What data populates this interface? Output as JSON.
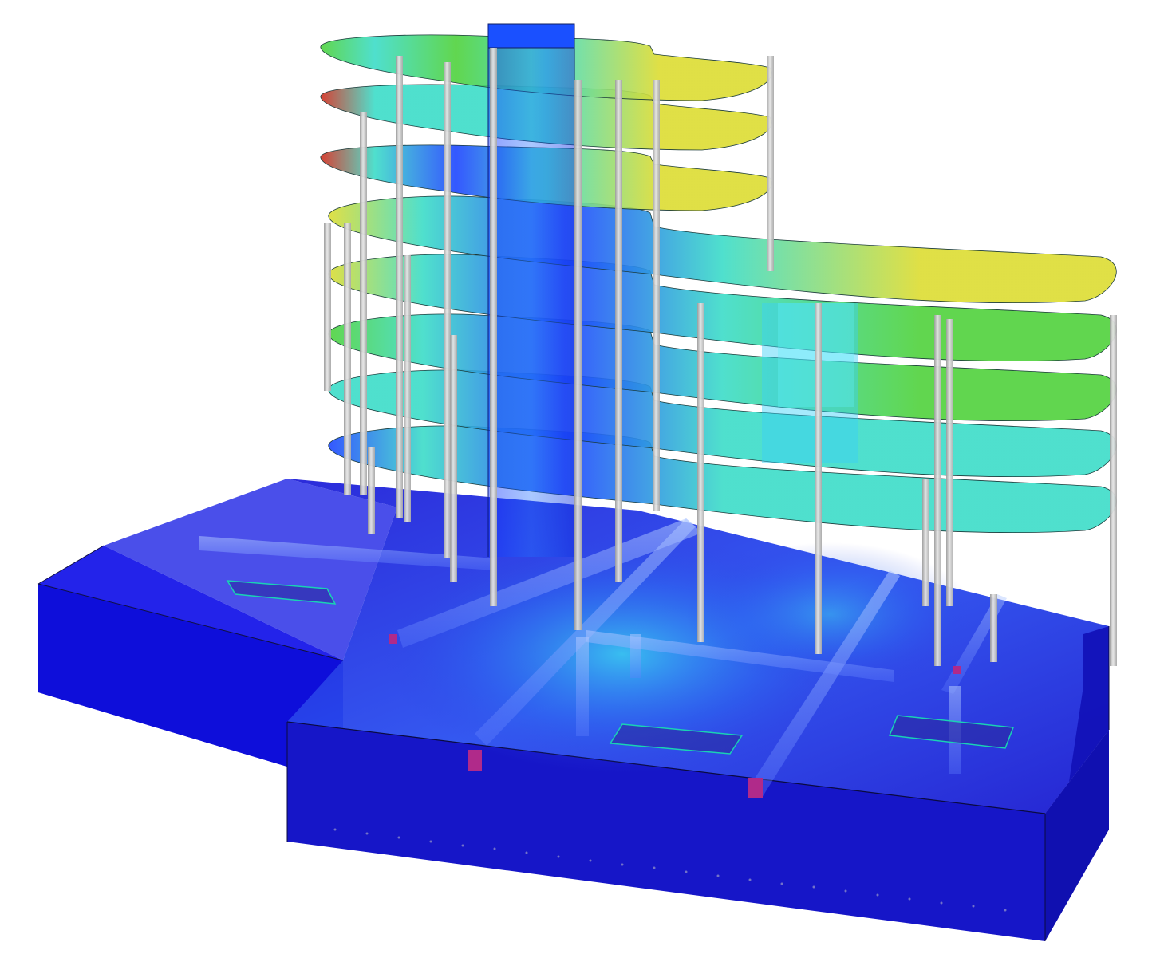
{
  "model": {
    "type": "3d-fe-structural-model",
    "storeys": 8,
    "elements": [
      "floor-slabs",
      "columns",
      "core-wall",
      "foundation-box",
      "basement-beams",
      "openings"
    ],
    "contour_colormap": [
      "#0000e0",
      "#0050ff",
      "#00b4f0",
      "#28dcb4",
      "#50dc28",
      "#c8dc28",
      "#f0b428",
      "#e02020"
    ],
    "slab_peak_colors": {
      "low": "#1e46ff",
      "mid": "#3cdcc8",
      "high": "#50d23c",
      "top": "#dcdc32",
      "max": "#d22d1e"
    },
    "column_color": "#c8c8c8",
    "foundation_color": "#1a1ad8",
    "opening_edge_color": "#19d2b4"
  }
}
